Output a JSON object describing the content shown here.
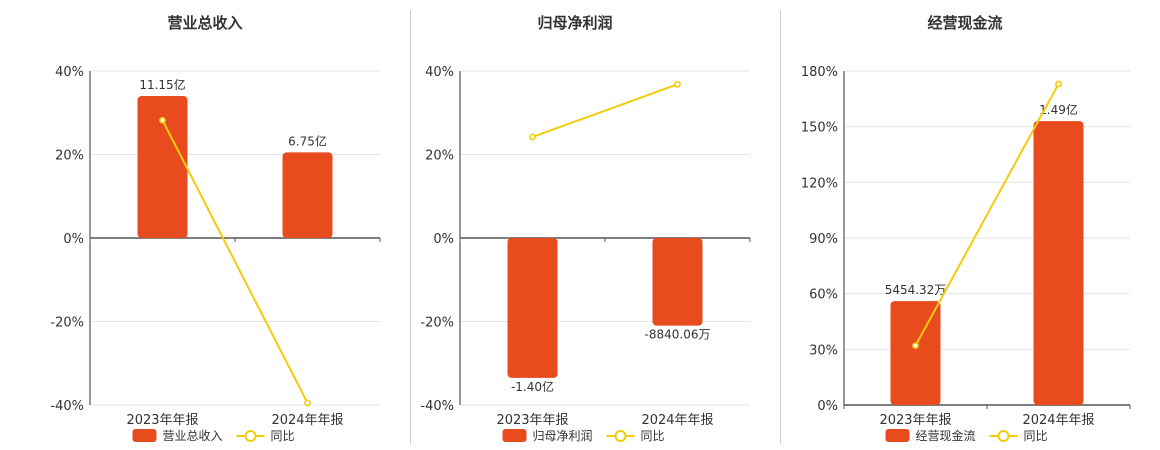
{
  "chart_data": [
    {
      "type": "bar",
      "title": "营业总收入",
      "categories": [
        "2023年年报",
        "2024年年报"
      ],
      "ylim": [
        -40,
        40
      ],
      "yticks": [
        "40%",
        "20%",
        "0%",
        "-20%",
        "-40%"
      ],
      "series": [
        {
          "name": "营业总收入",
          "type": "bar",
          "values": [
            34,
            20.5
          ],
          "labels": [
            "11.15亿",
            "6.75亿"
          ]
        },
        {
          "name": "同比",
          "type": "line",
          "values": [
            28.2,
            -39.5
          ]
        }
      ],
      "colors": {
        "bar": "#E84B1D",
        "line": "#F2CC0C"
      },
      "legend": "bottom"
    },
    {
      "type": "bar",
      "title": "归母净利润",
      "categories": [
        "2023年年报",
        "2024年年报"
      ],
      "ylim": [
        -40,
        40
      ],
      "yticks": [
        "40%",
        "20%",
        "0%",
        "-20%",
        "-40%"
      ],
      "series": [
        {
          "name": "归母净利润",
          "type": "bar",
          "values": [
            -33.5,
            -21
          ],
          "labels": [
            "-1.40亿",
            "-8840.06万"
          ]
        },
        {
          "name": "同比",
          "type": "line",
          "values": [
            24.2,
            36.8
          ]
        }
      ],
      "colors": {
        "bar": "#E84B1D",
        "line": "#F2CC0C"
      },
      "legend": "bottom"
    },
    {
      "type": "bar",
      "title": "经营现金流",
      "categories": [
        "2023年年报",
        "2024年年报"
      ],
      "ylim": [
        0,
        180
      ],
      "yticks": [
        "180%",
        "150%",
        "120%",
        "90%",
        "60%",
        "30%",
        "0%"
      ],
      "series": [
        {
          "name": "经营现金流",
          "type": "bar",
          "values": [
            56,
            153
          ],
          "labels": [
            "5454.32万",
            "1.49亿"
          ]
        },
        {
          "name": "同比",
          "type": "line",
          "values": [
            32,
            173
          ]
        }
      ],
      "colors": {
        "bar": "#E84B1D",
        "line": "#F2CC0C"
      },
      "legend": "bottom"
    }
  ]
}
